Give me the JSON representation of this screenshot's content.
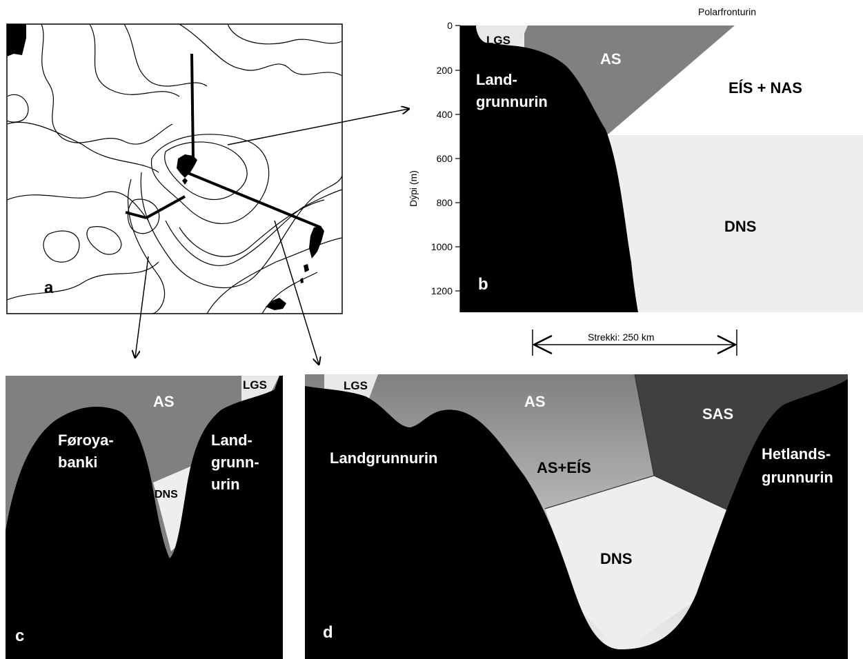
{
  "panels": {
    "a": {
      "letter": "a"
    },
    "b": {
      "letter": "b",
      "top_label": "Polarfronturin",
      "ylabel": "Dýpi (m)",
      "yticks": [
        "0",
        "200",
        "400",
        "600",
        "800",
        "1000",
        "1200"
      ],
      "labels": {
        "lgs": "LGS",
        "as": "AS",
        "land1": "Land-",
        "land2": "grunnurin",
        "eis_nas": "EÍS + NAS",
        "dns": "DNS"
      },
      "scale_label": "Strekki:  250 km"
    },
    "c": {
      "letter": "c",
      "labels": {
        "as": "AS",
        "lgs": "LGS",
        "fb1": "Føroya-",
        "fb2": "banki",
        "lg1": "Land-",
        "lg2": "grunn-",
        "lg3": "urin",
        "dns": "DNS"
      }
    },
    "d": {
      "letter": "d",
      "labels": {
        "lgs": "LGS",
        "as": "AS",
        "as_eis": "AS+EÍS",
        "sas": "SAS",
        "landgrunnurin": "Landgrunnurin",
        "hl1": "Hetlands-",
        "hl2": "grunnurin",
        "dns": "DNS"
      }
    }
  },
  "colors": {
    "land": "#000000",
    "as": "#808080",
    "sas": "#404040",
    "dns": "#eeeeee",
    "lgs": "#e8e8e8",
    "eis_nas": "#ffffff"
  }
}
